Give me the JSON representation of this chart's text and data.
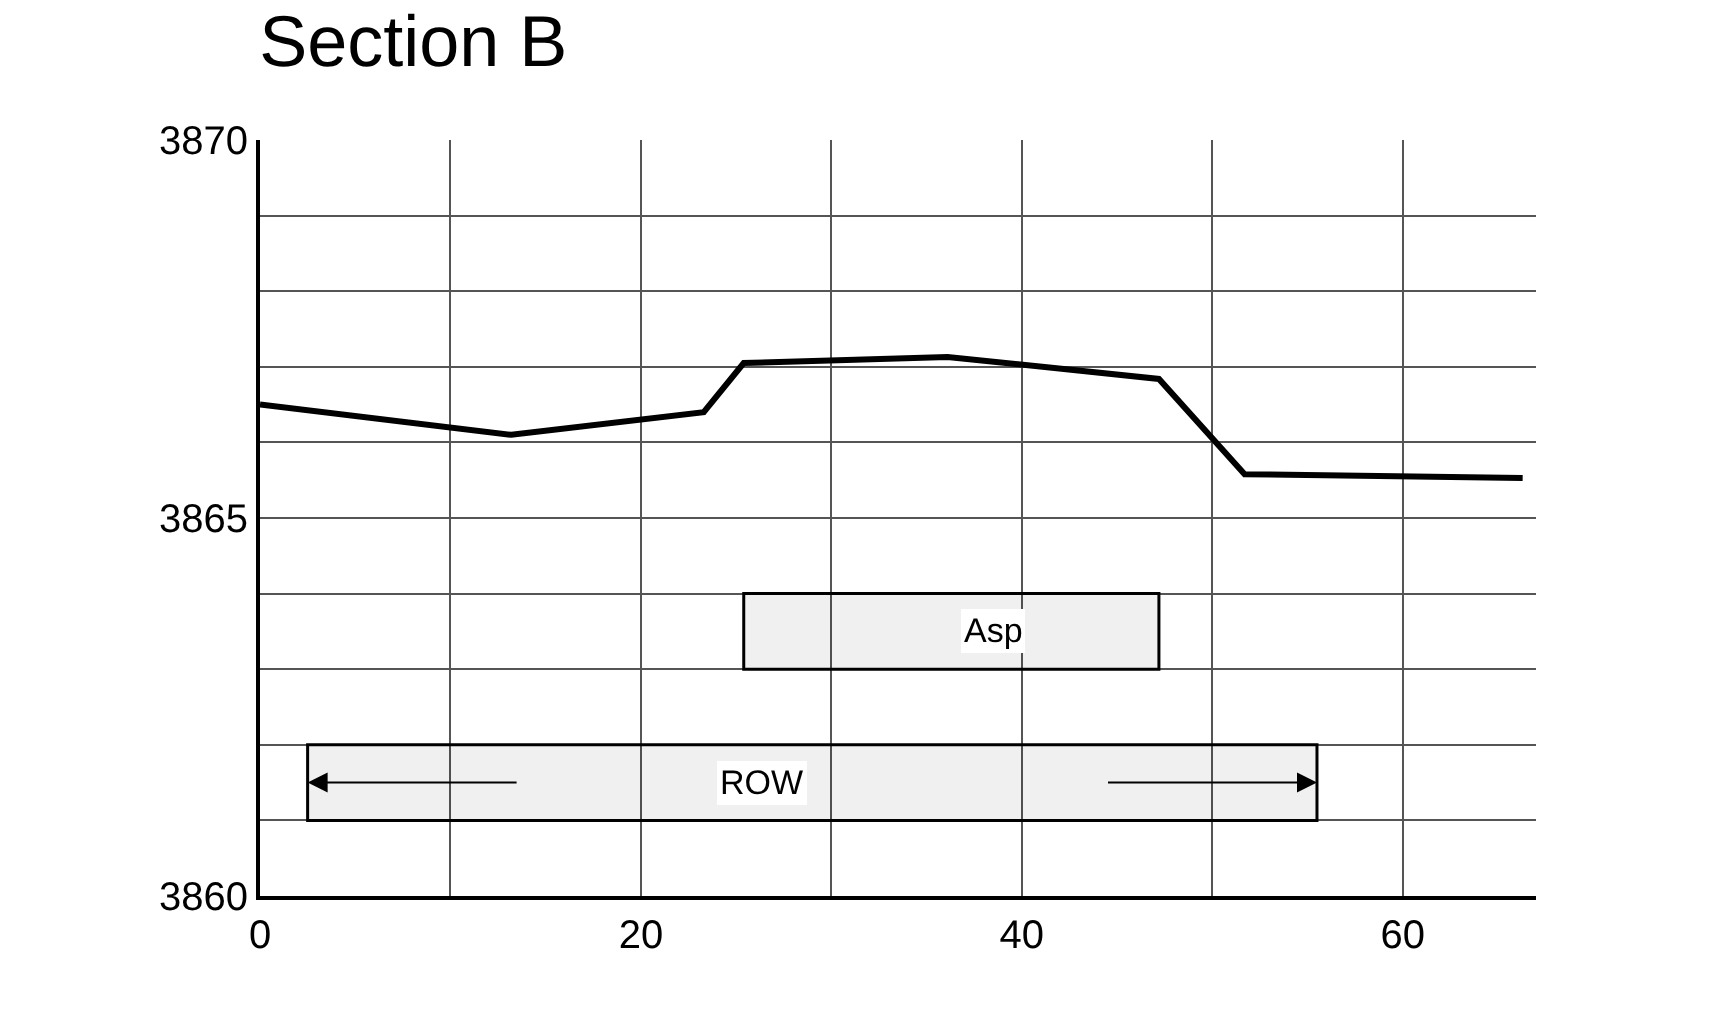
{
  "chart_data": {
    "type": "line",
    "title": "Section B",
    "x": [
      0,
      13.2,
      23.3,
      25.4,
      36.1,
      47.2,
      51.7,
      66.3
    ],
    "series": [
      {
        "color": "#000000",
        "values": [
          3866.5,
          3866.1,
          3866.4,
          3867.05,
          3867.13,
          3866.84,
          3865.58,
          3865.53
        ]
      }
    ],
    "xlim": [
      0,
      67
    ],
    "xticks": [
      0,
      {
        "value": 10,
        "label": null
      },
      20,
      {
        "value": 30,
        "label": null
      },
      40,
      {
        "value": 50,
        "label": null
      },
      60
    ],
    "ylim": [
      3860,
      3870
    ],
    "yticks": [
      3860,
      {
        "value": 3861,
        "label": null
      },
      {
        "value": 3862,
        "label": null
      },
      {
        "value": 3863,
        "label": null
      },
      {
        "value": 3864,
        "label": null
      },
      3865,
      {
        "value": 3866,
        "label": null
      },
      {
        "value": 3867,
        "label": null
      },
      {
        "value": 3868,
        "label": null
      },
      {
        "value": 3869,
        "label": null
      },
      3870
    ],
    "grid": true,
    "marker": "none",
    "line_style": "solid",
    "bands": [
      {
        "axis": "x",
        "from": 25.4,
        "to": 47.2,
        "label": "Asp",
        "color": "#000000"
      },
      {
        "axis": "x",
        "from": 2.5,
        "to": 55.5,
        "label": "ROW",
        "color": "#000000"
      }
    ]
  }
}
